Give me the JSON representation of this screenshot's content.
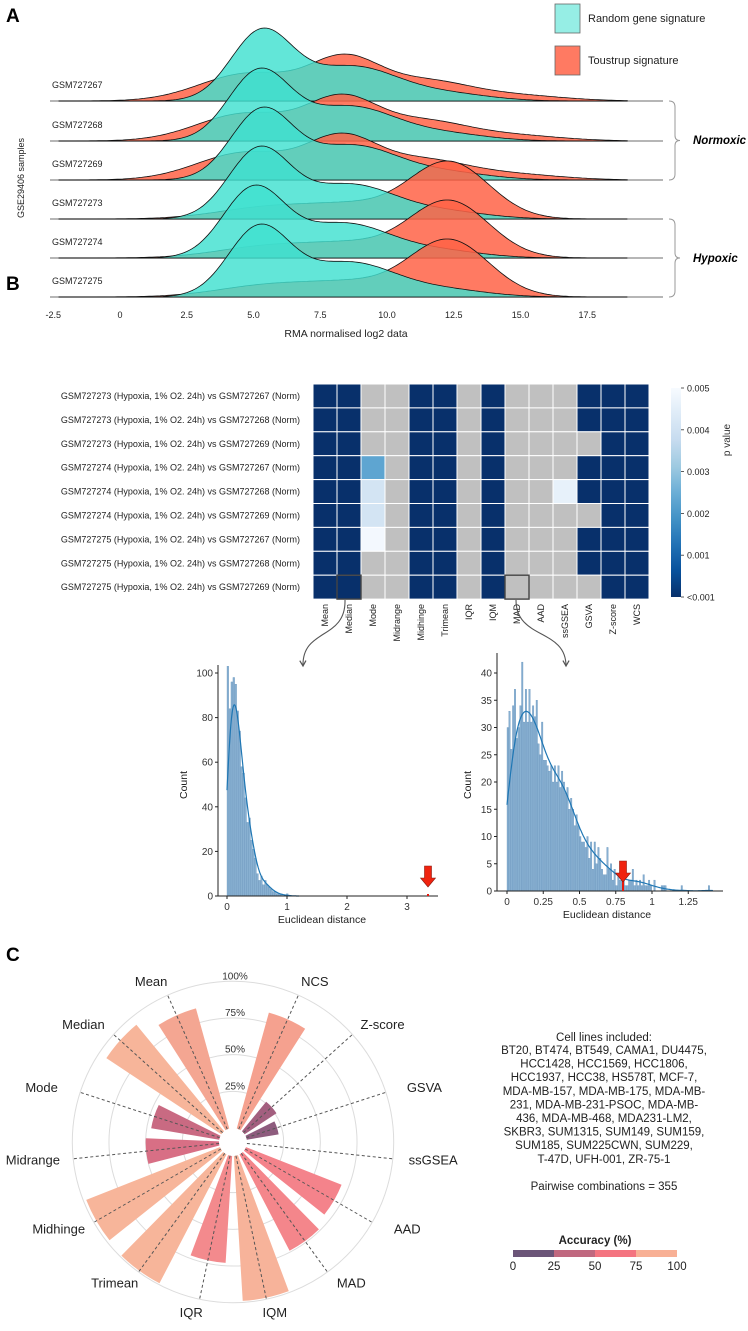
{
  "panels": {
    "a": "A",
    "b": "B",
    "c": "C"
  },
  "chart_data": [
    {
      "type": "ridgeline",
      "xlabel": "RMA normalised log2 data",
      "ylabel": "GSE29406 samples",
      "x_ticks": [
        -2.5,
        0,
        2.5,
        5,
        7.5,
        10,
        12.5,
        15,
        17.5
      ],
      "x_tick_labels": [
        "-2.5",
        "0",
        "2.5",
        "5.0",
        "7.5",
        "10.0",
        "12.5",
        "15.0",
        "17.5"
      ],
      "samples": [
        "GSM727267",
        "GSM727268",
        "GSM727269",
        "GSM727273",
        "GSM727274",
        "GSM727275"
      ],
      "groups": [
        {
          "label": "Normoxic",
          "samples": [
            "GSM727267",
            "GSM727268",
            "GSM727269"
          ]
        },
        {
          "label": "Hypoxic",
          "samples": [
            "GSM727273",
            "GSM727274",
            "GSM727275"
          ]
        }
      ],
      "series": [
        {
          "name": "Random gene signature",
          "color": "#40e0d0",
          "mode": [
            5.3,
            5.2,
            5.3,
            5.2,
            5.0,
            5.2
          ]
        },
        {
          "name": "Toustrup signature",
          "color": "#ff6347",
          "mode": [
            8.4,
            8.3,
            8.3,
            12.3,
            12.3,
            12.3
          ]
        }
      ]
    },
    {
      "type": "heatmap",
      "rows": [
        "GSM727273 (Hypoxia, 1% O2. 24h) vs GSM727267 (Norm)",
        "GSM727273 (Hypoxia, 1% O2. 24h) vs GSM727268 (Norm)",
        "GSM727273 (Hypoxia, 1% O2. 24h) vs GSM727269 (Norm)",
        "GSM727274 (Hypoxia, 1% O2. 24h) vs GSM727267 (Norm)",
        "GSM727274 (Hypoxia, 1% O2. 24h) vs GSM727268 (Norm)",
        "GSM727274 (Hypoxia, 1% O2. 24h) vs GSM727269 (Norm)",
        "GSM727275 (Hypoxia, 1% O2. 24h) vs GSM727267 (Norm)",
        "GSM727275 (Hypoxia, 1% O2. 24h) vs GSM727268 (Norm)",
        "GSM727275 (Hypoxia, 1% O2. 24h) vs GSM727269 (Norm)"
      ],
      "columns": [
        "Mean",
        "Median",
        "Mode",
        "Midrange",
        "Midhinge",
        "Trimean",
        "IQR",
        "IQM",
        "MAD",
        "AAD",
        "ssGSEA",
        "GSVA",
        "Z-score",
        "WCS"
      ],
      "values": [
        [
          "<0.001",
          "<0.001",
          null,
          null,
          "<0.001",
          "<0.001",
          null,
          "<0.001",
          null,
          null,
          null,
          "<0.001",
          "<0.001",
          "<0.001"
        ],
        [
          "<0.001",
          "<0.001",
          null,
          null,
          "<0.001",
          "<0.001",
          null,
          "<0.001",
          null,
          null,
          null,
          "<0.001",
          "<0.001",
          "<0.001"
        ],
        [
          "<0.001",
          "<0.001",
          null,
          null,
          "<0.001",
          "<0.001",
          null,
          "<0.001",
          null,
          null,
          null,
          null,
          "<0.001",
          "<0.001"
        ],
        [
          "<0.001",
          "<0.001",
          0.0023,
          null,
          "<0.001",
          "<0.001",
          null,
          "<0.001",
          null,
          null,
          null,
          "<0.001",
          "<0.001",
          "<0.001"
        ],
        [
          "<0.001",
          "<0.001",
          0.0041,
          null,
          "<0.001",
          "<0.001",
          null,
          "<0.001",
          null,
          null,
          0.0046,
          "<0.001",
          "<0.001",
          "<0.001"
        ],
        [
          "<0.001",
          "<0.001",
          0.0041,
          null,
          "<0.001",
          "<0.001",
          null,
          "<0.001",
          null,
          null,
          null,
          null,
          "<0.001",
          "<0.001"
        ],
        [
          "<0.001",
          "<0.001",
          0.0049,
          null,
          "<0.001",
          "<0.001",
          null,
          "<0.001",
          null,
          null,
          null,
          "<0.001",
          "<0.001",
          "<0.001"
        ],
        [
          "<0.001",
          "<0.001",
          null,
          null,
          "<0.001",
          "<0.001",
          null,
          "<0.001",
          null,
          null,
          null,
          "<0.001",
          "<0.001",
          "<0.001"
        ],
        [
          "<0.001",
          "<0.001",
          null,
          null,
          "<0.001",
          "<0.001",
          null,
          "<0.001",
          null,
          null,
          null,
          null,
          "<0.001",
          "<0.001"
        ]
      ],
      "not_significant_color": "#c0c0c0",
      "highlighted_cells": [
        {
          "row": 8,
          "column": "Median"
        },
        {
          "row": 8,
          "column": "MAD"
        }
      ],
      "colorbar": {
        "label": "p value",
        "range": [
          0,
          0.005
        ],
        "ticks": [
          0.005,
          0.004,
          0.003,
          0.002,
          0.001,
          0
        ],
        "tick_labels": [
          "0.005",
          "0.004",
          "0.003",
          "0.002",
          "0.001",
          "<0.001"
        ]
      }
    },
    {
      "type": "histogram",
      "source_cell": "Median",
      "xlabel": "Euclidean distance",
      "ylabel": "Count",
      "bin_width": 0.033,
      "counts": [
        103,
        84,
        96,
        98,
        95,
        83,
        74,
        58,
        55,
        44,
        33,
        35,
        25,
        21,
        17,
        10,
        7,
        9,
        5,
        7,
        5,
        4,
        3,
        2,
        2,
        1,
        1,
        1,
        0,
        0,
        1,
        0
      ],
      "observed": 3.35,
      "x_ticks": [
        0,
        1,
        2,
        3
      ],
      "x_tick_labels": [
        "0",
        "1",
        "2",
        "3"
      ],
      "y_ticks": [
        0,
        20,
        40,
        60,
        80,
        100
      ],
      "y_tick_labels": [
        "0",
        "20",
        "40",
        "60",
        "80",
        "100"
      ],
      "xlim": [
        -0.05,
        3.5
      ],
      "ylim": [
        0,
        108
      ]
    },
    {
      "type": "histogram",
      "source_cell": "MAD",
      "xlabel": "Euclidean distance",
      "ylabel": "Count",
      "bin_width": 0.0125,
      "counts": [
        30,
        33,
        26,
        34,
        37,
        28,
        30,
        34,
        42,
        31,
        37,
        31,
        37,
        31,
        34,
        32,
        35,
        27,
        25,
        31,
        24,
        24,
        23,
        22,
        23,
        20,
        23,
        20,
        23,
        19,
        22,
        20,
        18,
        19,
        15,
        17,
        15,
        12,
        14,
        12,
        10,
        9,
        9,
        8,
        10,
        6,
        9,
        4,
        9,
        5,
        8,
        6,
        4,
        3,
        3,
        8,
        4,
        5,
        2,
        4,
        1,
        3,
        2,
        3,
        2,
        1,
        1,
        2,
        2,
        4,
        1,
        2,
        1,
        2,
        1,
        3,
        1,
        1,
        2,
        1,
        0,
        2,
        0,
        0,
        0,
        1,
        1,
        1,
        0,
        0,
        0,
        0,
        0,
        0,
        0,
        0,
        1,
        0,
        0,
        0,
        0,
        0,
        0,
        0,
        0,
        0,
        0,
        0,
        0,
        0,
        0,
        1
      ],
      "observed": 0.8,
      "x_ticks": [
        0,
        0.25,
        0.5,
        0.75,
        1,
        1.25
      ],
      "x_tick_labels": [
        "0",
        "0.25",
        "0.5",
        "0.75",
        "1",
        "1.25"
      ],
      "y_ticks": [
        0,
        5,
        10,
        15,
        20,
        25,
        30,
        35,
        40
      ],
      "y_tick_labels": [
        "0",
        "5",
        "10",
        "15",
        "20",
        "25",
        "30",
        "35",
        "40"
      ],
      "xlim": [
        -0.07,
        1.49
      ],
      "ylim": [
        0,
        43
      ]
    },
    {
      "type": "polar_bar",
      "categories": [
        "NCS",
        "Z-score",
        "GSVA",
        "ssGSEA",
        "AAD",
        "MAD",
        "IQM",
        "IQR",
        "Trimean",
        "Midhinge",
        "Midrange",
        "Mode",
        "Median",
        "Mean"
      ],
      "values": [
        82,
        26,
        22,
        0,
        70,
        74,
        99,
        73,
        99,
        98,
        50,
        47,
        94,
        85
      ],
      "colors": [
        "#f5a18f",
        "#a35f7f",
        "#8e5c7e",
        "#8e5c7e",
        "#f4838b",
        "#f4868b",
        "#f7b39a",
        "#f38a8d",
        "#f7b59a",
        "#f7b59a",
        "#d86f85",
        "#c96a82",
        "#f7b59a",
        "#f4a692"
      ],
      "radial_ticks": [
        25,
        50,
        75,
        100
      ],
      "radial_tick_labels": [
        "25%",
        "50%",
        "75%",
        "100%"
      ],
      "legend": {
        "title": "Accuracy (%)",
        "bins": [
          {
            "from": 0,
            "to": 25,
            "color": "#6b5578"
          },
          {
            "from": 25,
            "to": 50,
            "color": "#c0687f"
          },
          {
            "from": 50,
            "to": 75,
            "color": "#f47480"
          },
          {
            "from": 75,
            "to": 100,
            "color": "#f8b095"
          }
        ],
        "tick_labels": [
          "0",
          "25",
          "50",
          "75",
          "100"
        ]
      }
    }
  ],
  "cell_lines": {
    "title": "Cell lines included:",
    "lines": [
      "BT20, BT474, BT549, CAMA1, DU4475,",
      "HCC1428, HCC1569, HCC1806,",
      "HCC1937, HCC38, HS578T, MCF-7,",
      "MDA-MB-157, MDA-MB-175, MDA-MB-",
      "231, MDA-MB-231-PSOC, MDA-MB-",
      "436, MDA-MB-468, MDA231-LM2,",
      "SKBR3, SUM1315, SUM149, SUM159,",
      "SUM185, SUM225CWN, SUM229,",
      "T-47D, UFH-001, ZR-75-1"
    ],
    "pairwise": "Pairwise combinations = 355"
  }
}
